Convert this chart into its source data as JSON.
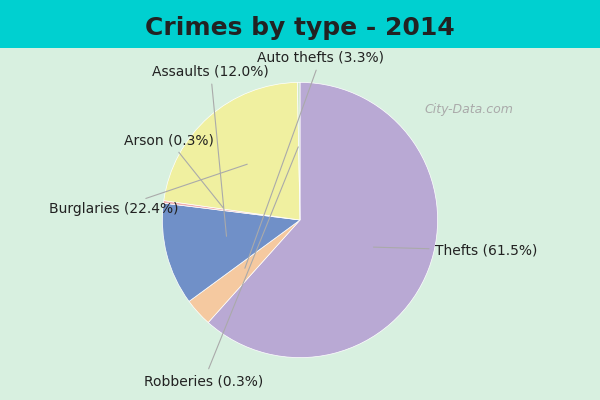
{
  "title": "Crimes by type - 2014",
  "slices": [
    {
      "label": "Thefts",
      "pct": 61.5,
      "color": "#b9a9d4"
    },
    {
      "label": "Auto thefts",
      "pct": 3.3,
      "color": "#f5c9a0"
    },
    {
      "label": "Assaults",
      "pct": 12.0,
      "color": "#7090c8"
    },
    {
      "label": "Arson",
      "pct": 0.3,
      "color": "#f0b0b0"
    },
    {
      "label": "Burglaries",
      "pct": 22.4,
      "color": "#f0f0a0"
    },
    {
      "label": "Robberies",
      "pct": 0.3,
      "color": "#d0e8c8"
    }
  ],
  "background_top": "#00d0d0",
  "background_chart": "#d8f0e0",
  "title_fontsize": 18,
  "label_fontsize": 10,
  "watermark": "City-Data.com"
}
